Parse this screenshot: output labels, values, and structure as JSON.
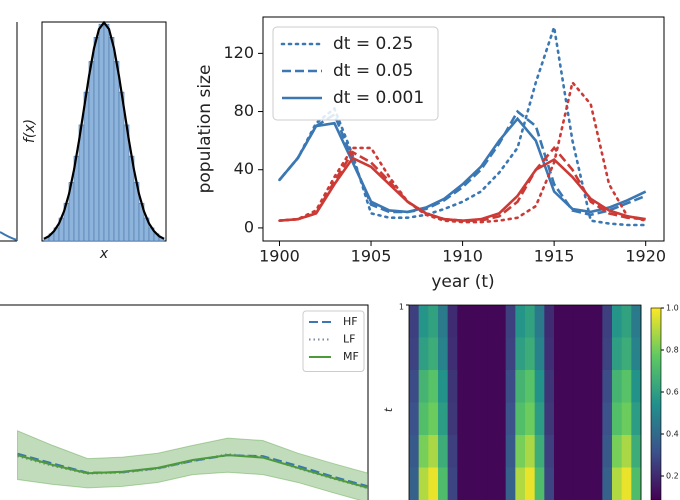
{
  "chart_data": [
    {
      "type": "histogram",
      "xlabel": "x",
      "ylabel": "f(x)",
      "bins": [
        -3,
        -2.75,
        -2.5,
        -2.25,
        -2,
        -1.75,
        -1.5,
        -1.25,
        -1,
        -0.75,
        -0.5,
        -0.25,
        0,
        0.25,
        0.5,
        0.75,
        1,
        1.25,
        1.5,
        1.75,
        2,
        2.25,
        2.5,
        2.75,
        3
      ],
      "values": [
        0.006,
        0.013,
        0.024,
        0.042,
        0.069,
        0.107,
        0.155,
        0.212,
        0.272,
        0.328,
        0.372,
        0.396,
        0.396,
        0.372,
        0.328,
        0.272,
        0.212,
        0.155,
        0.107,
        0.069,
        0.042,
        0.024,
        0.013,
        0.006
      ],
      "color": "#8fb4dc",
      "edgecolor": "#4a76a8",
      "curve": {
        "color": "#000000",
        "x": [
          -3,
          -2.75,
          -2.5,
          -2.25,
          -2,
          -1.75,
          -1.5,
          -1.25,
          -1,
          -0.75,
          -0.5,
          -0.25,
          0,
          0.25,
          0.5,
          0.75,
          1,
          1.25,
          1.5,
          1.75,
          2,
          2.25,
          2.5,
          2.75,
          3
        ],
        "values": [
          0.004,
          0.009,
          0.018,
          0.032,
          0.054,
          0.086,
          0.13,
          0.183,
          0.242,
          0.301,
          0.352,
          0.387,
          0.399,
          0.387,
          0.352,
          0.301,
          0.242,
          0.183,
          0.13,
          0.086,
          0.054,
          0.032,
          0.018,
          0.009,
          0.004
        ]
      },
      "xlim": [
        -3.1,
        3.1
      ],
      "ylim": [
        0,
        0.4
      ]
    },
    {
      "type": "line",
      "xlabel": "year (t)",
      "ylabel": "population size",
      "legend": "upper left",
      "x": [
        1900,
        1901,
        1902,
        1903,
        1904,
        1905,
        1906,
        1907,
        1908,
        1909,
        1910,
        1911,
        1912,
        1913,
        1914,
        1915,
        1916,
        1917,
        1918,
        1919,
        1920
      ],
      "xlim": [
        1899.1,
        1921
      ],
      "ylim": [
        -9,
        145
      ],
      "xticks": [
        1900,
        1905,
        1910,
        1915,
        1920
      ],
      "yticks": [
        0,
        40,
        80,
        120
      ],
      "series": [
        {
          "name": "dt = 0.25",
          "color": "#3a77b3",
          "style": "dotted",
          "values": [
            33,
            48,
            72,
            82,
            50,
            10,
            7,
            7,
            9,
            13,
            18,
            25,
            38,
            55,
            100,
            138,
            60,
            5,
            3,
            2,
            2
          ]
        },
        {
          "name": "dt = 0.05",
          "color": "#3a77b3",
          "style": "dashed",
          "values": [
            33,
            48,
            70,
            78,
            47,
            16,
            11,
            11,
            13,
            19,
            28,
            40,
            58,
            80,
            70,
            30,
            12,
            9,
            12,
            17,
            22
          ]
        },
        {
          "name": "dt = 0.001",
          "color": "#3a77b3",
          "style": "solid",
          "values": [
            33,
            48,
            70,
            72,
            45,
            18,
            12,
            11,
            14,
            20,
            30,
            42,
            60,
            75,
            60,
            25,
            13,
            11,
            14,
            19,
            25
          ]
        },
        {
          "color": "#cc3a35",
          "style": "dotted",
          "values": [
            5,
            6,
            12,
            35,
            55,
            55,
            35,
            18,
            9,
            5,
            4,
            4,
            5,
            7,
            15,
            45,
            100,
            85,
            30,
            8,
            5
          ]
        },
        {
          "color": "#cc3a35",
          "style": "dashed",
          "values": [
            5,
            6,
            10,
            32,
            52,
            45,
            32,
            18,
            10,
            6,
            5,
            5,
            8,
            18,
            40,
            55,
            40,
            18,
            10,
            7,
            6
          ]
        },
        {
          "color": "#cc3a35",
          "style": "solid",
          "values": [
            5,
            6,
            10,
            30,
            48,
            42,
            30,
            18,
            10,
            6,
            5,
            6,
            10,
            22,
            40,
            47,
            35,
            20,
            12,
            8,
            6
          ]
        }
      ]
    },
    {
      "type": "band",
      "legend": "upper right",
      "x": [
        0,
        0.1,
        0.2,
        0.3,
        0.4,
        0.5,
        0.6,
        0.7,
        0.8,
        0.9,
        1
      ],
      "xlim": [
        -0.05,
        1
      ],
      "ylim": [
        -2,
        2
      ],
      "series": [
        {
          "name": "HF",
          "color": "#3a77b3",
          "style": "dashed",
          "values": [
            -1.05,
            -1.25,
            -1.44,
            -1.43,
            -1.35,
            -1.2,
            -1.08,
            -1.1,
            -1.3,
            -1.52,
            -1.72
          ]
        },
        {
          "name": "LF",
          "color": "#7d8a9c",
          "style": "dotted",
          "values": [
            -1.1,
            -1.3,
            -1.46,
            -1.44,
            -1.36,
            -1.2,
            -1.06,
            -1.12,
            -1.35,
            -1.56,
            -1.76
          ]
        },
        {
          "name": "MF",
          "color": "#4d9a3a",
          "style": "solid",
          "values": [
            -1.08,
            -1.28,
            -1.45,
            -1.42,
            -1.34,
            -1.18,
            -1.08,
            -1.13,
            -1.34,
            -1.55,
            -1.75
          ],
          "upper": [
            -0.58,
            -0.88,
            -1.15,
            -1.12,
            -1.04,
            -0.88,
            -0.73,
            -0.78,
            -1.04,
            -1.25,
            -1.45
          ],
          "lower": [
            -1.58,
            -1.68,
            -1.75,
            -1.72,
            -1.64,
            -1.48,
            -1.43,
            -1.48,
            -1.64,
            -1.85,
            -2.05
          ]
        }
      ]
    },
    {
      "type": "heatmap",
      "ylabel": "t",
      "yticks": [
        1
      ],
      "clim": [
        0,
        1
      ],
      "colorbar_ticks": [
        0.2,
        0.4,
        0.6,
        0.8,
        {
          "value": 1,
          "label": "1.0"
        }
      ],
      "z": [
        [
          0.19,
          0.52,
          0.57,
          0.41,
          0.13,
          0.02,
          0.02,
          0.02,
          0.02,
          0.02,
          0.19,
          0.52,
          0.57,
          0.41,
          0.13,
          0.02,
          0.02,
          0.02,
          0.02,
          0.02,
          0.19,
          0.52,
          0.57,
          0.41
        ],
        [
          0.2,
          0.56,
          0.62,
          0.44,
          0.14,
          0.02,
          0.02,
          0.02,
          0.02,
          0.02,
          0.2,
          0.56,
          0.62,
          0.44,
          0.14,
          0.02,
          0.02,
          0.02,
          0.02,
          0.02,
          0.2,
          0.56,
          0.62,
          0.44
        ],
        [
          0.23,
          0.65,
          0.72,
          0.51,
          0.16,
          0.02,
          0.02,
          0.02,
          0.02,
          0.02,
          0.23,
          0.65,
          0.72,
          0.51,
          0.16,
          0.02,
          0.02,
          0.02,
          0.02,
          0.02,
          0.23,
          0.65,
          0.72,
          0.51
        ],
        [
          0.25,
          0.7,
          0.77,
          0.55,
          0.17,
          0.02,
          0.02,
          0.02,
          0.02,
          0.02,
          0.25,
          0.7,
          0.77,
          0.55,
          0.17,
          0.02,
          0.02,
          0.02,
          0.02,
          0.02,
          0.25,
          0.7,
          0.77,
          0.55
        ],
        [
          0.28,
          0.79,
          0.87,
          0.62,
          0.19,
          0.02,
          0.02,
          0.02,
          0.02,
          0.02,
          0.28,
          0.79,
          0.87,
          0.62,
          0.19,
          0.02,
          0.02,
          0.02,
          0.02,
          0.02,
          0.28,
          0.79,
          0.87,
          0.62
        ],
        [
          0.31,
          0.88,
          0.97,
          0.69,
          0.21,
          0.02,
          0.02,
          0.02,
          0.02,
          0.02,
          0.31,
          0.88,
          0.97,
          0.69,
          0.21,
          0.02,
          0.02,
          0.02,
          0.02,
          0.02,
          0.31,
          0.88,
          0.97,
          0.69
        ]
      ]
    }
  ]
}
